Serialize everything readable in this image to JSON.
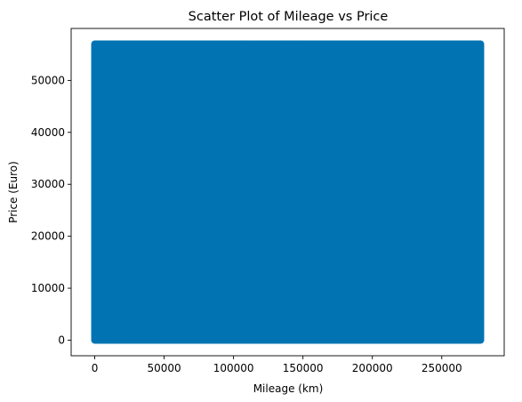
{
  "chart_data": {
    "type": "scatter",
    "title": "Scatter Plot of Mileage vs Price",
    "xlabel": "Mileage (km)",
    "ylabel": "Price (Euro)",
    "xlim": [
      -17000,
      295000
    ],
    "ylim": [
      -3000,
      60000
    ],
    "xticks": [
      0,
      50000,
      100000,
      150000,
      200000,
      250000
    ],
    "xtick_labels": [
      "0",
      "50000",
      "100000",
      "150000",
      "200000",
      "250000"
    ],
    "yticks": [
      0,
      10000,
      20000,
      30000,
      40000,
      50000
    ],
    "ytick_labels": [
      "0",
      "10000",
      "20000",
      "30000",
      "40000",
      "50000"
    ],
    "marker_color": "#0173b2",
    "grid": false,
    "series": [
      {
        "name": "Mileage vs Price",
        "dense_regions": [
          {
            "x_range": [
              0,
              278000
            ],
            "y_range": [
              0,
              57000
            ]
          }
        ],
        "points": [
          [
            226000,
            51500
          ],
          [
            249000,
            50000
          ],
          [
            250000,
            48500
          ],
          [
            232000,
            46000
          ],
          [
            276000,
            46000
          ],
          [
            262000,
            45500
          ],
          [
            263000,
            44200
          ],
          [
            210000,
            47000
          ],
          [
            240000,
            43500
          ],
          [
            272000,
            43000
          ],
          [
            254000,
            42500
          ],
          [
            227000,
            45000
          ],
          [
            205000,
            49500
          ],
          [
            198000,
            54000
          ],
          [
            210000,
            55000
          ],
          [
            206000,
            52800
          ],
          [
            186000,
            55200
          ],
          [
            180000,
            54000
          ],
          [
            172000,
            53700
          ],
          [
            167000,
            52200
          ],
          [
            139000,
            56500
          ],
          [
            154000,
            55200
          ],
          [
            150000,
            56300
          ],
          [
            133000,
            55000
          ],
          [
            132000,
            56800
          ],
          [
            144000,
            53300
          ],
          [
            160000,
            50700
          ],
          [
            168000,
            49000
          ],
          [
            178000,
            47800
          ],
          [
            174000,
            45000
          ],
          [
            190000,
            45800
          ],
          [
            200000,
            44200
          ],
          [
            183000,
            48200
          ],
          [
            196000,
            47200
          ],
          [
            214000,
            43100
          ],
          [
            220000,
            42600
          ],
          [
            225000,
            40000
          ],
          [
            233000,
            41600
          ],
          [
            238000,
            37300
          ],
          [
            244000,
            38400
          ],
          [
            258000,
            40000
          ],
          [
            264000,
            39200
          ],
          [
            268000,
            38000
          ],
          [
            274000,
            39500
          ],
          [
            270000,
            36500
          ],
          [
            253000,
            36000
          ],
          [
            246000,
            34000
          ],
          [
            256000,
            33000
          ],
          [
            266000,
            34100
          ],
          [
            275000,
            31300
          ],
          [
            262000,
            31000
          ],
          [
            248000,
            30200
          ],
          [
            235000,
            31200
          ],
          [
            228000,
            32800
          ],
          [
            220000,
            34300
          ],
          [
            212000,
            36300
          ],
          [
            204000,
            38700
          ],
          [
            214000,
            38800
          ],
          [
            230000,
            36500
          ],
          [
            241000,
            34800
          ],
          [
            223000,
            29400
          ],
          [
            234000,
            28300
          ],
          [
            241000,
            27800
          ],
          [
            253000,
            28400
          ],
          [
            260000,
            26900
          ],
          [
            265000,
            25800
          ],
          [
            272000,
            24300
          ],
          [
            276000,
            21500
          ],
          [
            270000,
            28600
          ],
          [
            244000,
            25300
          ],
          [
            232000,
            24700
          ],
          [
            255000,
            24300
          ],
          [
            266000,
            22500
          ],
          [
            276000,
            26000
          ],
          [
            218000,
            36200
          ],
          [
            208000,
            41000
          ],
          [
            196000,
            40500
          ],
          [
            186000,
            42000
          ],
          [
            192000,
            37300
          ],
          [
            238000,
            39700
          ],
          [
            230000,
            38900
          ],
          [
            243000,
            36900
          ],
          [
            254000,
            33500
          ],
          [
            248000,
            31800
          ],
          [
            262000,
            33800
          ],
          [
            275000,
            23500
          ],
          [
            260000,
            23000
          ],
          [
            225000,
            27000
          ],
          [
            216000,
            30500
          ],
          [
            203000,
            32500
          ],
          [
            158000,
            53000
          ],
          [
            148000,
            51000
          ],
          [
            176000,
            51500
          ],
          [
            165000,
            47800
          ],
          [
            188000,
            51000
          ],
          [
            143000,
            50000
          ],
          [
            122000,
            49500
          ],
          [
            125000,
            53700
          ],
          [
            116000,
            55500
          ],
          [
            108000,
            56700
          ],
          [
            268000,
            20000
          ],
          [
            272000,
            16500
          ],
          [
            262000,
            19000
          ],
          [
            255000,
            18500
          ],
          [
            277000,
            12500
          ],
          [
            277000,
            8500
          ],
          [
            276000,
            4500
          ],
          [
            275000,
            2500
          ],
          [
            270000,
            1500
          ],
          [
            18000,
            800
          ],
          [
            5000,
            900
          ],
          [
            2000,
            6300
          ],
          [
            6000,
            4100
          ],
          [
            4000,
            2300
          ],
          [
            60000,
            400
          ],
          [
            120000,
            300
          ],
          [
            160000,
            600
          ],
          [
            200000,
            400
          ],
          [
            240000,
            900
          ],
          [
            10000,
            7800
          ],
          [
            3000,
            9200
          ],
          [
            1000,
            14000
          ],
          [
            15000,
            3100
          ],
          [
            35000,
            1200
          ],
          [
            45000,
            1500
          ]
        ]
      }
    ]
  }
}
